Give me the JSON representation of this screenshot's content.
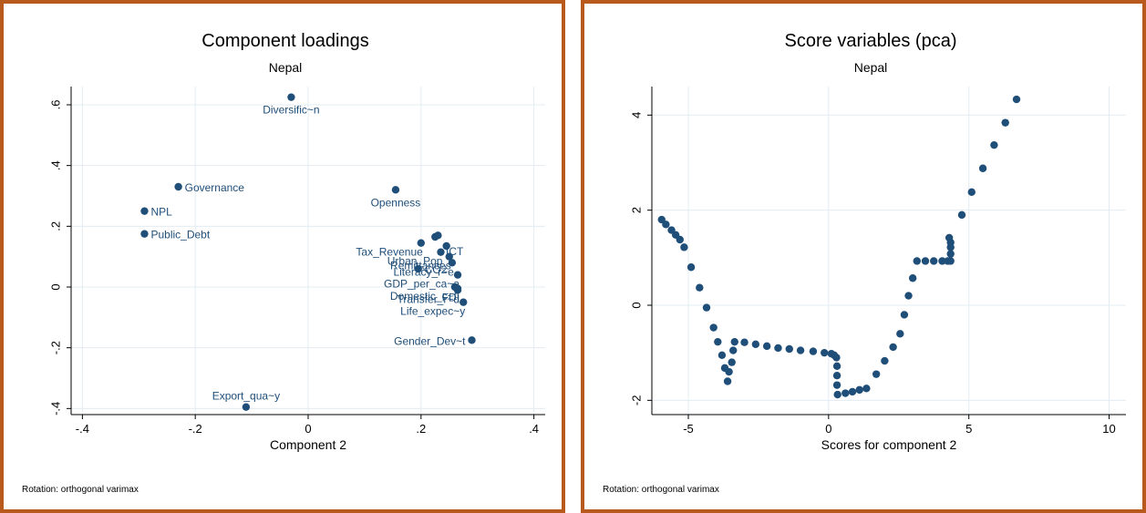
{
  "chart_data": [
    {
      "type": "scatter",
      "title": "Component loadings",
      "subtitle": "Nepal",
      "xlabel": "Component 2",
      "ylabel": "",
      "xlim": [
        -0.42,
        0.42
      ],
      "ylim": [
        -0.42,
        0.66
      ],
      "xticks": [
        {
          "v": -0.4,
          "label": "-.4"
        },
        {
          "v": -0.2,
          "label": "-.2"
        },
        {
          "v": 0,
          "label": "0"
        },
        {
          "v": 0.2,
          "label": ".2"
        },
        {
          "v": 0.4,
          "label": ".4"
        }
      ],
      "yticks": [
        {
          "v": -0.4,
          "label": "-.4"
        },
        {
          "v": -0.2,
          "label": "-.2"
        },
        {
          "v": 0,
          "label": "0"
        },
        {
          "v": 0.2,
          "label": ".2"
        },
        {
          "v": 0.4,
          "label": ".4"
        },
        {
          "v": 0.6,
          "label": ".6"
        }
      ],
      "grid": true,
      "note": "Rotation: orthogonal varimax",
      "colors": {
        "frame": "#b85a1e",
        "marker": "#1f4e79",
        "grid": "#e3ecf3",
        "label": "#1f4e79"
      },
      "points": [
        {
          "x": -0.03,
          "y": 0.625,
          "label": "Diversific~n",
          "pos": "below"
        },
        {
          "x": -0.23,
          "y": 0.33,
          "label": "Governance",
          "pos": "right"
        },
        {
          "x": -0.29,
          "y": 0.25,
          "label": "NPL",
          "pos": "right"
        },
        {
          "x": -0.29,
          "y": 0.175,
          "label": "Public_Debt",
          "pos": "right"
        },
        {
          "x": 0.155,
          "y": 0.32,
          "label": "Openness",
          "pos": "below"
        },
        {
          "x": 0.225,
          "y": 0.165,
          "label": "",
          "pos": "none"
        },
        {
          "x": 0.23,
          "y": 0.17,
          "label": "",
          "pos": "none"
        },
        {
          "x": 0.2,
          "y": 0.145,
          "label": "Tax_Revenue",
          "pos": "belowleft"
        },
        {
          "x": 0.245,
          "y": 0.135,
          "label": "ICT",
          "pos": "belowright"
        },
        {
          "x": 0.235,
          "y": 0.115,
          "label": "Urban_Pop",
          "pos": "belowleft"
        },
        {
          "x": 0.25,
          "y": 0.1,
          "label": "Remittances",
          "pos": "belowleft"
        },
        {
          "x": 0.255,
          "y": 0.08,
          "label": "Literacy_r~e",
          "pos": "belowleft"
        },
        {
          "x": 0.195,
          "y": 0.06,
          "label": "CO2",
          "pos": "right"
        },
        {
          "x": 0.265,
          "y": 0.04,
          "label": "GDP_per_ca~a",
          "pos": "belowleft"
        },
        {
          "x": 0.26,
          "y": 0.0,
          "label": "Domestic_c~t",
          "pos": "belowleft"
        },
        {
          "x": 0.265,
          "y": -0.005,
          "label": "FDI",
          "pos": "belowleft"
        },
        {
          "x": 0.265,
          "y": -0.01,
          "label": "Transfer_r~d",
          "pos": "belowleft"
        },
        {
          "x": 0.275,
          "y": -0.05,
          "label": "Life_expec~y",
          "pos": "belowleft"
        },
        {
          "x": 0.29,
          "y": -0.175,
          "label": "Gender_Dev~t",
          "pos": "left"
        },
        {
          "x": -0.11,
          "y": -0.395,
          "label": "Export_qua~y",
          "pos": "above"
        }
      ]
    },
    {
      "type": "scatter",
      "title": "Score variables (pca)",
      "subtitle": "Nepal",
      "xlabel": "Scores for component 2",
      "ylabel": "",
      "xlim": [
        -6.3,
        10.6
      ],
      "ylim": [
        -2.3,
        4.6
      ],
      "xticks": [
        {
          "v": -5,
          "label": "-5"
        },
        {
          "v": 0,
          "label": "0"
        },
        {
          "v": 5,
          "label": "5"
        },
        {
          "v": 10,
          "label": "10"
        }
      ],
      "yticks": [
        {
          "v": -2,
          "label": "-2"
        },
        {
          "v": 0,
          "label": "0"
        },
        {
          "v": 2,
          "label": "2"
        },
        {
          "v": 4,
          "label": "4"
        }
      ],
      "grid": true,
      "note": "Rotation: orthogonal varimax",
      "colors": {
        "frame": "#b85a1e",
        "marker": "#1f4e79",
        "grid": "#e3ecf3"
      },
      "points": [
        [
          -5.95,
          1.8
        ],
        [
          -5.8,
          1.7
        ],
        [
          -5.6,
          1.58
        ],
        [
          -5.45,
          1.48
        ],
        [
          -5.3,
          1.38
        ],
        [
          -5.15,
          1.22
        ],
        [
          -4.9,
          0.8
        ],
        [
          -4.6,
          0.37
        ],
        [
          -4.35,
          -0.05
        ],
        [
          -4.1,
          -0.47
        ],
        [
          -3.95,
          -0.77
        ],
        [
          -3.8,
          -1.05
        ],
        [
          -3.7,
          -1.32
        ],
        [
          -3.6,
          -1.6
        ],
        [
          -3.55,
          -1.4
        ],
        [
          -3.45,
          -1.2
        ],
        [
          -3.4,
          -0.95
        ],
        [
          -3.35,
          -0.77
        ],
        [
          -3.0,
          -0.78
        ],
        [
          -2.6,
          -0.82
        ],
        [
          -2.2,
          -0.86
        ],
        [
          -1.8,
          -0.9
        ],
        [
          -1.4,
          -0.92
        ],
        [
          -1.0,
          -0.95
        ],
        [
          -0.55,
          -0.97
        ],
        [
          -0.15,
          -1.0
        ],
        [
          0.1,
          -1.02
        ],
        [
          0.2,
          -1.05
        ],
        [
          0.28,
          -1.1
        ],
        [
          0.3,
          -1.28
        ],
        [
          0.3,
          -1.48
        ],
        [
          0.3,
          -1.68
        ],
        [
          0.32,
          -1.88
        ],
        [
          0.6,
          -1.85
        ],
        [
          0.85,
          -1.82
        ],
        [
          1.1,
          -1.78
        ],
        [
          1.35,
          -1.75
        ],
        [
          1.7,
          -1.45
        ],
        [
          2.0,
          -1.17
        ],
        [
          2.3,
          -0.88
        ],
        [
          2.55,
          -0.6
        ],
        [
          2.7,
          -0.2
        ],
        [
          2.85,
          0.2
        ],
        [
          3.0,
          0.57
        ],
        [
          3.15,
          0.93
        ],
        [
          3.45,
          0.93
        ],
        [
          3.75,
          0.93
        ],
        [
          4.05,
          0.93
        ],
        [
          4.25,
          0.93
        ],
        [
          4.35,
          0.93
        ],
        [
          4.35,
          1.08
        ],
        [
          4.35,
          1.22
        ],
        [
          4.35,
          1.32
        ],
        [
          4.3,
          1.42
        ],
        [
          4.75,
          1.9
        ],
        [
          5.1,
          2.38
        ],
        [
          5.5,
          2.88
        ],
        [
          5.9,
          3.37
        ],
        [
          6.3,
          3.84
        ],
        [
          6.7,
          4.33
        ]
      ]
    }
  ]
}
